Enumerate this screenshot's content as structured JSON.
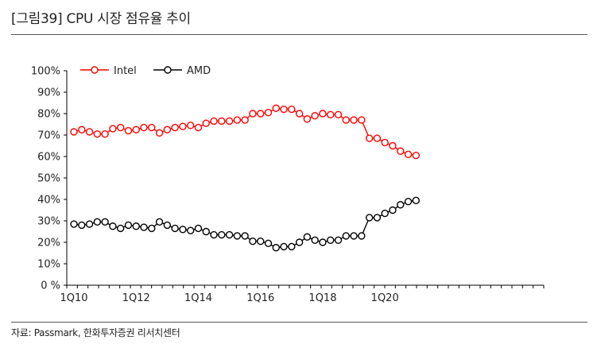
{
  "header": {
    "title": "[그림39]   CPU 시장 점유율 추이"
  },
  "footer": {
    "source": "자료: Passmark, 한화투자증권 리서치센터"
  },
  "chart_data": {
    "type": "line",
    "title": "",
    "xlabel": "",
    "ylabel": "",
    "ylim": [
      0,
      100
    ],
    "y_ticks": [
      0,
      10,
      20,
      30,
      40,
      50,
      60,
      70,
      80,
      90,
      100
    ],
    "y_tick_labels": [
      "0 %",
      "10%",
      "20%",
      "30%",
      "40%",
      "50%",
      "60%",
      "70%",
      "80%",
      "90%",
      "100%"
    ],
    "x_tick_labels": [
      {
        "index": 0,
        "label": "1Q10"
      },
      {
        "index": 8,
        "label": "1Q12"
      },
      {
        "index": 16,
        "label": "1Q14"
      },
      {
        "index": 24,
        "label": "1Q16"
      },
      {
        "index": 32,
        "label": "1Q18"
      },
      {
        "index": 40,
        "label": "1Q20"
      }
    ],
    "grid": false,
    "legend_position": "top-left",
    "series": [
      {
        "name": "Intel",
        "color": "#ff0000",
        "values": [
          71.5,
          72.5,
          71.5,
          70.5,
          70.5,
          73,
          73.5,
          72,
          72.5,
          73.5,
          73.5,
          71,
          72.5,
          73.5,
          74,
          74.5,
          73.5,
          75.5,
          76.5,
          76.5,
          76.5,
          77,
          77,
          80,
          80,
          80.5,
          82.5,
          82,
          82,
          80,
          77.5,
          79,
          80,
          79.5,
          79.5,
          77,
          77,
          77,
          68.5,
          68.5,
          66.5,
          65,
          62.5,
          61,
          60.5
        ]
      },
      {
        "name": "AMD",
        "color": "#000000",
        "values": [
          28.5,
          28,
          28.5,
          29.5,
          29.5,
          27.5,
          26.5,
          28,
          27.5,
          27,
          26.5,
          29.5,
          28,
          26.5,
          26,
          25.5,
          26.5,
          25,
          23.5,
          23.5,
          23.5,
          23,
          23,
          20.5,
          20.5,
          19.5,
          17.5,
          18,
          18,
          20,
          22.5,
          21,
          20,
          21,
          21,
          23,
          23,
          23,
          31.5,
          31.5,
          33.5,
          35,
          37.5,
          39,
          39.5
        ]
      }
    ]
  }
}
